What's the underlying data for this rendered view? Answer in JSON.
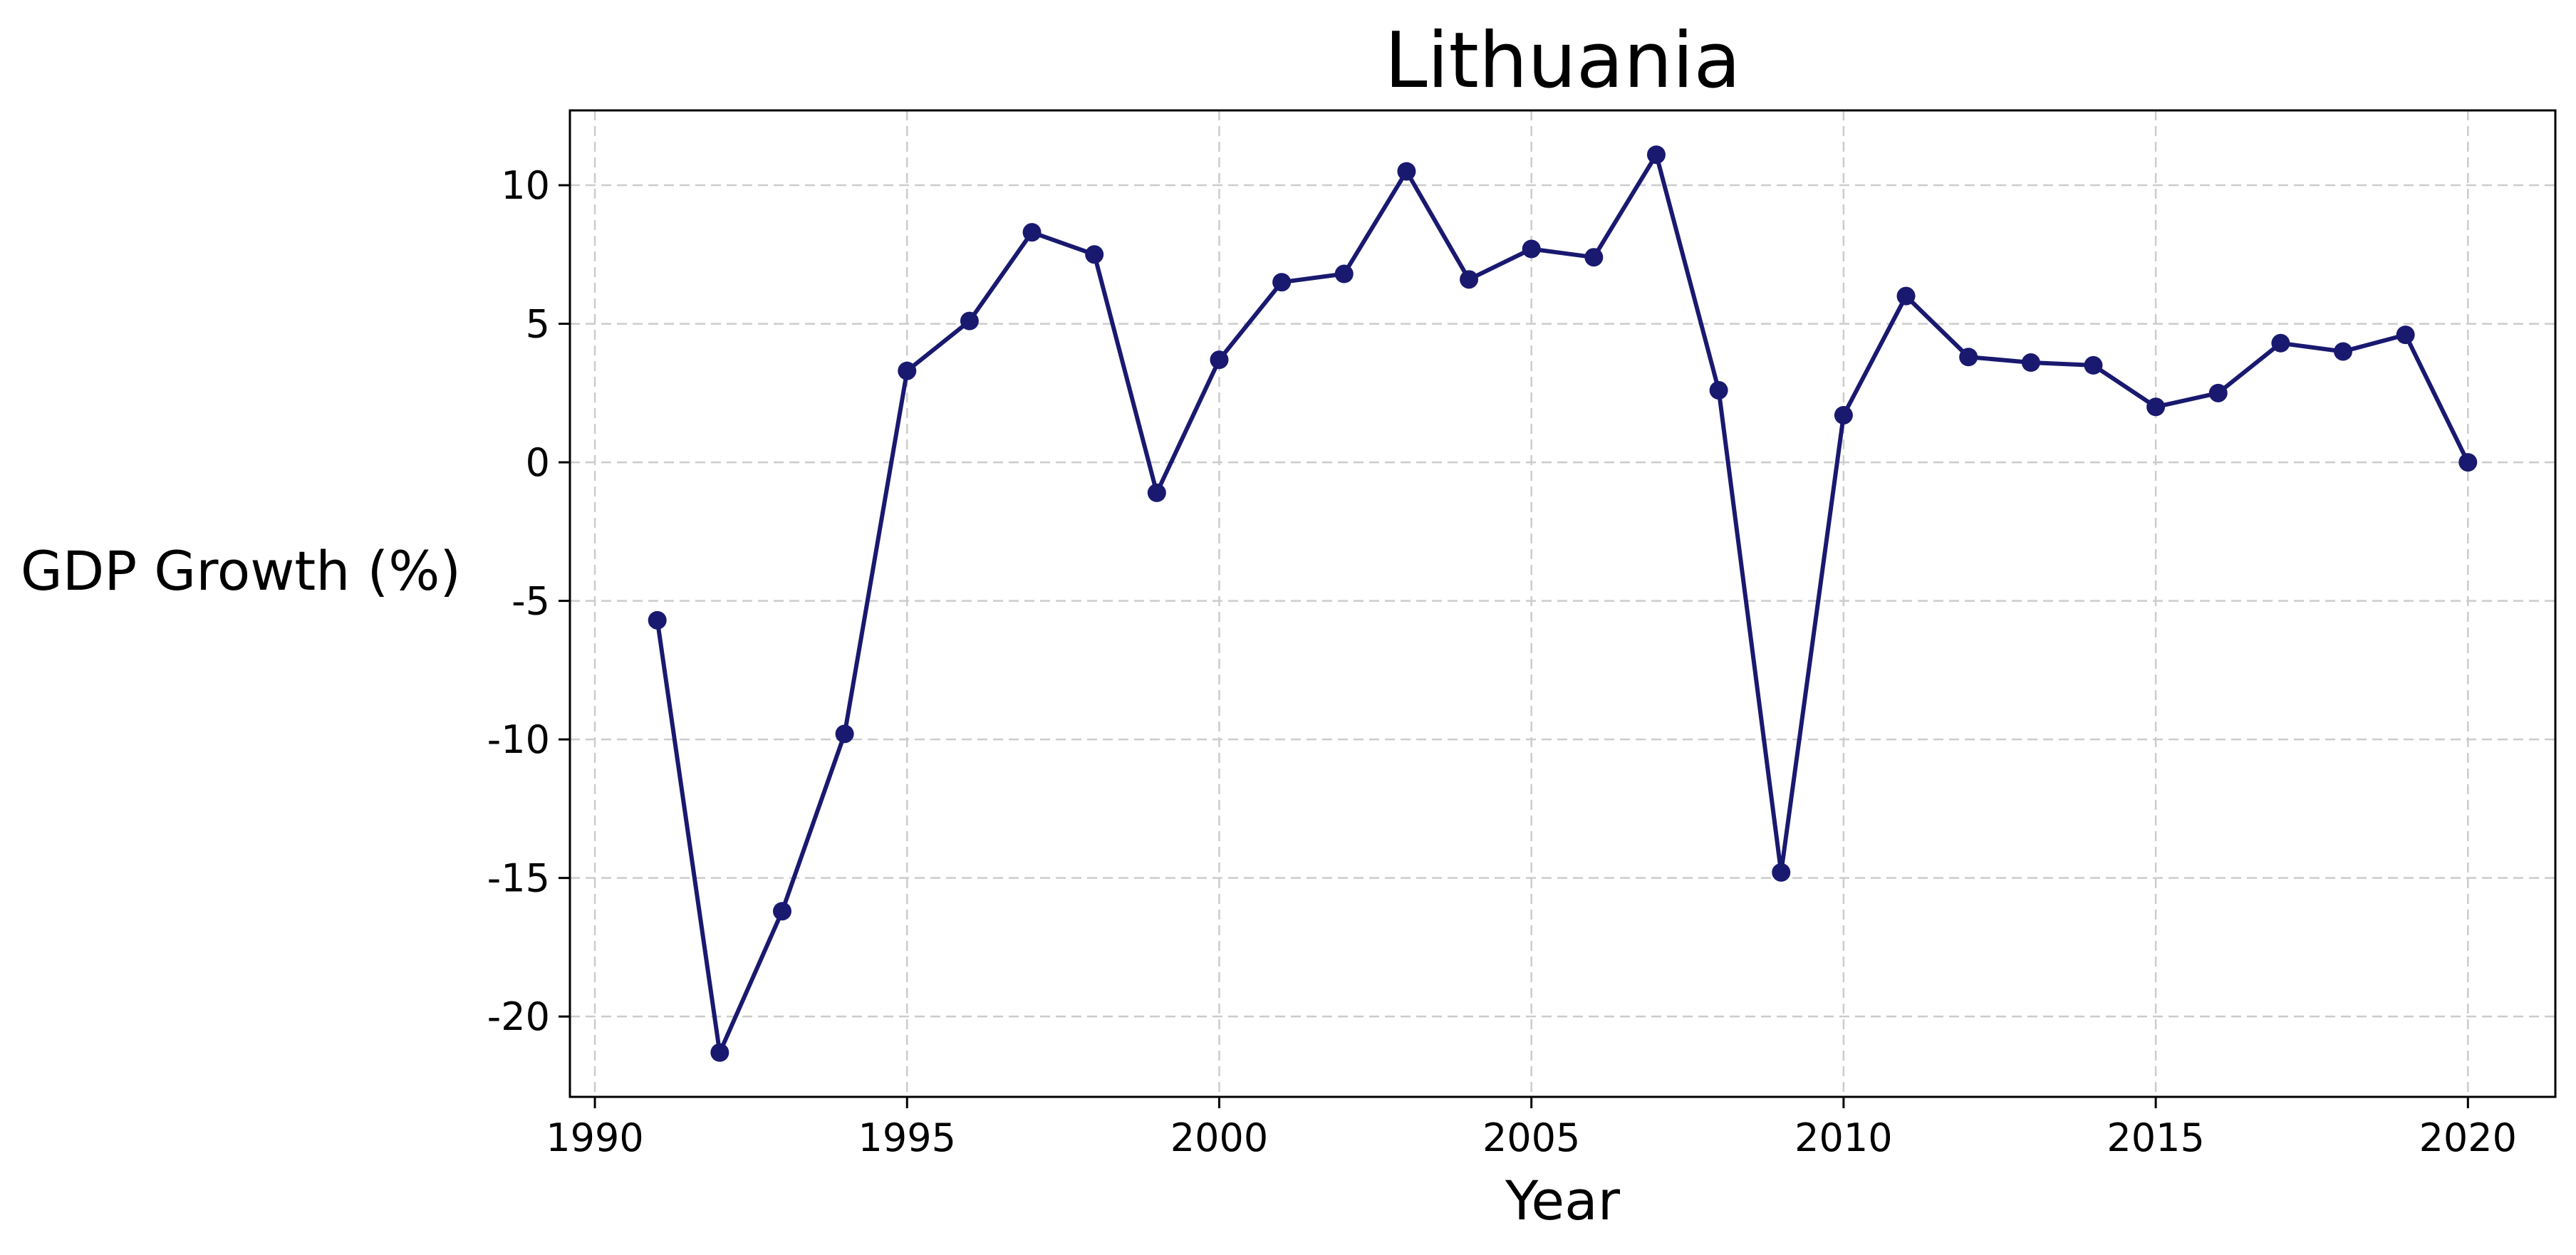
{
  "chart_data": {
    "type": "line",
    "title": "Lithuania",
    "xlabel": "Year",
    "ylabel": "GDP Growth (%)",
    "xlim": [
      1989.6,
      2021.4
    ],
    "ylim": [
      -22.9,
      12.7
    ],
    "x_ticks": [
      1990,
      1995,
      2000,
      2005,
      2010,
      2015,
      2020
    ],
    "x_tick_labels": [
      "1990",
      "1995",
      "2000",
      "2005",
      "2010",
      "2015",
      "2020"
    ],
    "y_ticks": [
      10,
      5,
      0,
      -5,
      -10,
      -15,
      -20
    ],
    "y_tick_labels": [
      "10",
      "5",
      "0",
      "-5",
      "-10",
      "-15",
      "-20"
    ],
    "grid": true,
    "colors": {
      "line": "#191970",
      "grid": "#cccccc",
      "axes": "#000000"
    },
    "series": [
      {
        "x": [
          1991,
          1992,
          1993,
          1994,
          1995,
          1996,
          1997,
          1998,
          1999,
          2000,
          2001,
          2002,
          2003,
          2004,
          2005,
          2006,
          2007,
          2008,
          2009,
          2010,
          2011,
          2012,
          2013,
          2014,
          2015,
          2016,
          2017,
          2018,
          2019,
          2020
        ],
        "values": [
          -5.7,
          -21.3,
          -16.2,
          -9.8,
          3.3,
          5.1,
          8.3,
          7.5,
          -1.1,
          3.7,
          6.5,
          6.8,
          10.5,
          6.6,
          7.7,
          7.4,
          11.1,
          2.6,
          -14.8,
          1.7,
          6.0,
          3.8,
          3.6,
          3.5,
          2.0,
          2.5,
          4.3,
          4.0,
          4.6,
          0.0
        ]
      }
    ]
  }
}
